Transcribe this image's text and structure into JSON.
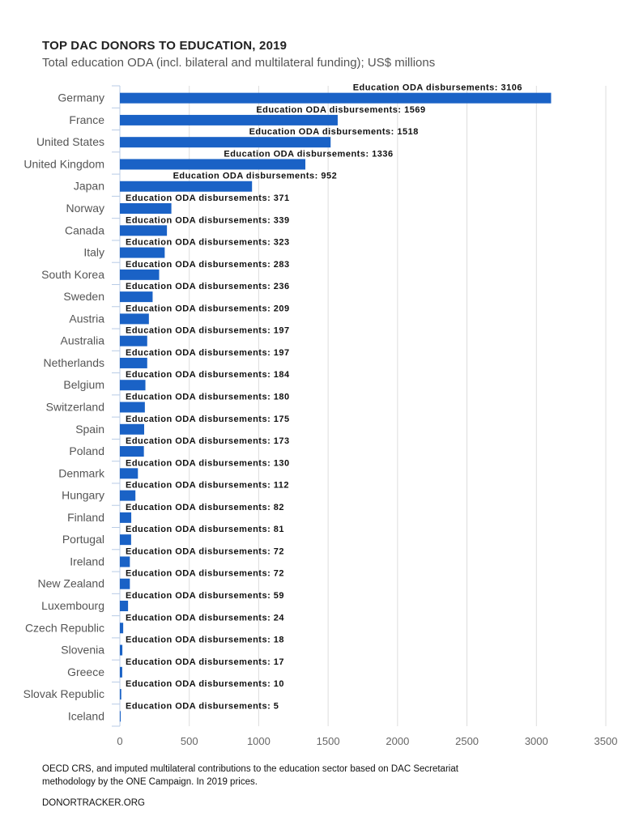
{
  "chart_data": {
    "type": "bar",
    "orientation": "horizontal",
    "title": "TOP DAC DONORS TO EDUCATION, 2019",
    "subtitle": "Total education ODA (incl. bilateral and multilateral funding); US$ millions",
    "series_label": "Education ODA disbursements",
    "categories": [
      "Germany",
      "France",
      "United States",
      "United Kingdom",
      "Japan",
      "Norway",
      "Canada",
      "Italy",
      "South Korea",
      "Sweden",
      "Austria",
      "Australia",
      "Netherlands",
      "Belgium",
      "Switzerland",
      "Spain",
      "Poland",
      "Denmark",
      "Hungary",
      "Finland",
      "Portugal",
      "Ireland",
      "New Zealand",
      "Luxembourg",
      "Czech Republic",
      "Slovenia",
      "Greece",
      "Slovak Republic",
      "Iceland"
    ],
    "values": [
      3106,
      1569,
      1518,
      1336,
      952,
      371,
      339,
      323,
      283,
      236,
      209,
      197,
      197,
      184,
      180,
      175,
      173,
      130,
      112,
      82,
      81,
      72,
      72,
      59,
      24,
      18,
      17,
      10,
      5
    ],
    "xlim": [
      0,
      3500
    ],
    "xticks": [
      0,
      500,
      1000,
      1500,
      2000,
      2500,
      3000,
      3500
    ],
    "grid": true,
    "bar_color": "#1a62c6"
  },
  "footer": {
    "source": "OECD CRS, and imputed multilateral contributions to the education sector based on DAC Secretariat methodology by the ONE Campaign. In 2019 prices.",
    "site": "DONORTRACKER.ORG"
  }
}
